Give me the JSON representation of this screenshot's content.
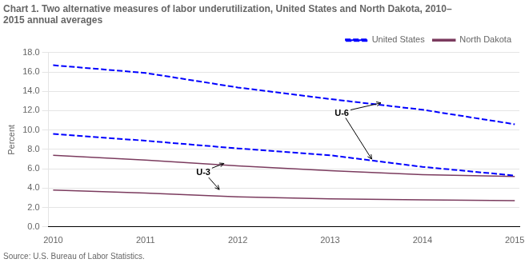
{
  "chart_data": {
    "type": "line",
    "title": [
      "Chart 1. Two alternative measures of labor underutilization, United States and North Dakota, 2010–",
      "2015 annual averages"
    ],
    "y_label": "Percent",
    "source": "Source: U.S. Bureau of Labor Statistics.",
    "x": [
      2010,
      2011,
      2012,
      2013,
      2014,
      2015
    ],
    "series": [
      {
        "name": "United States",
        "color": "#0000FF",
        "line_style": "dashed",
        "values": [
          16.7,
          15.9,
          14.4,
          13.2,
          12.1,
          10.6
        ]
      },
      {
        "name": "United States",
        "color": "#0000FF",
        "line_style": "dashed",
        "values": [
          9.6,
          8.9,
          8.1,
          7.4,
          6.2,
          5.3
        ]
      },
      {
        "name": "North Dakota",
        "color": "#7B3B5E",
        "line_style": "solid",
        "values": [
          7.4,
          6.9,
          6.3,
          5.8,
          5.4,
          5.2
        ]
      },
      {
        "name": "North Dakota",
        "color": "#7B3B5E",
        "line_style": "solid",
        "values": [
          3.8,
          3.5,
          3.1,
          2.9,
          2.8,
          2.7
        ]
      }
    ],
    "xlim": [
      2009.95,
      2015.05
    ],
    "xticks": [
      2010,
      2011,
      2012,
      2013,
      2014,
      2015
    ],
    "ylim": [
      0,
      18
    ],
    "yticks": [
      {
        "value": 0,
        "label": "0.0"
      },
      {
        "value": 2,
        "label": "2.0"
      },
      {
        "value": 4,
        "label": "4.0"
      },
      {
        "value": 6,
        "label": "6.0"
      },
      {
        "value": 8,
        "label": "8.0"
      },
      {
        "value": 10,
        "label": "10.0"
      },
      {
        "value": 12,
        "label": "12.0"
      },
      {
        "value": 14,
        "label": "14.0"
      },
      {
        "value": 16,
        "label": "16.0"
      },
      {
        "value": 18,
        "label": "18.0"
      }
    ],
    "grid": "y",
    "legend": "upper right",
    "annotations": [
      {
        "text": "U-6",
        "x": 2013.05,
        "y": 11.5,
        "arrows": [
          {
            "x": 2013.55,
            "y": 12.8
          },
          {
            "x": 2013.45,
            "y": 7.0
          }
        ]
      },
      {
        "text": "U-3",
        "x": 2011.55,
        "y": 5.35,
        "arrows": [
          {
            "x": 2011.85,
            "y": 6.55
          },
          {
            "x": 2011.8,
            "y": 3.85
          }
        ]
      }
    ]
  }
}
